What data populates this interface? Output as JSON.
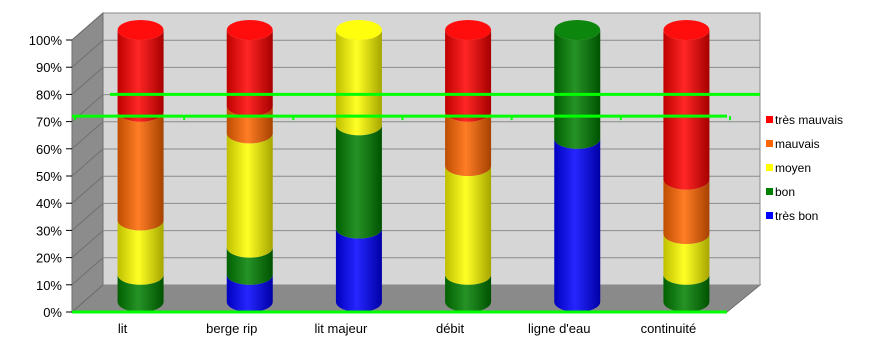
{
  "chart_data": {
    "type": "bar",
    "stacked": true,
    "percent": true,
    "three_d": true,
    "title": "",
    "xlabel": "",
    "ylabel": "",
    "ylim": [
      0,
      100
    ],
    "y_ticks": [
      "0%",
      "10%",
      "20%",
      "30%",
      "40%",
      "50%",
      "60%",
      "70%",
      "80%",
      "90%",
      "100%"
    ],
    "categories": [
      "lit",
      "berge rip",
      "lit majeur",
      "débit",
      "ligne d'eau",
      "continuité"
    ],
    "series": [
      {
        "name": "très bon",
        "color": "#0000ff",
        "values": [
          0,
          10,
          27,
          0,
          60,
          0
        ]
      },
      {
        "name": "bon",
        "color": "#008000",
        "values": [
          10,
          10,
          38,
          10,
          40,
          10
        ]
      },
      {
        "name": "moyen",
        "color": "#ffff00",
        "values": [
          20,
          42,
          35,
          40,
          0,
          15
        ]
      },
      {
        "name": "mauvais",
        "color": "#ff6600",
        "values": [
          40,
          10,
          0,
          20,
          0,
          20
        ]
      },
      {
        "name": "très mauvais",
        "color": "#ff0000",
        "values": [
          30,
          28,
          0,
          30,
          0,
          55
        ]
      }
    ],
    "reference_lines": [
      {
        "value": 80,
        "color": "#00ff00"
      },
      {
        "value": 72,
        "color": "#00ff00"
      }
    ],
    "legend_position": "right",
    "grid": true
  }
}
